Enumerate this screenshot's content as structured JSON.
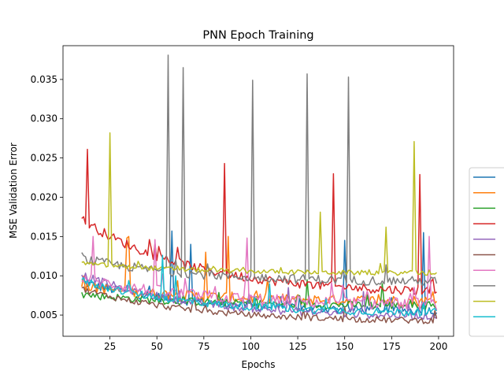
{
  "chart_data": {
    "type": "line",
    "title": "PNN Epoch Training",
    "xlabel": "Epochs",
    "ylabel": "MSE Validation Error",
    "xlim": [
      0,
      208
    ],
    "ylim": [
      0.0023,
      0.0393
    ],
    "xticks": [
      25,
      50,
      75,
      100,
      125,
      150,
      175,
      200
    ],
    "yticks": [
      0.005,
      0.01,
      0.015,
      0.02,
      0.025,
      0.03,
      0.035
    ],
    "ytick_labels": [
      "0.005",
      "0.010",
      "0.015",
      "0.020",
      "0.025",
      "0.030",
      "0.035"
    ],
    "grid": false,
    "legend_position": "right",
    "x_start": 10,
    "x_end": 199,
    "series": [
      {
        "color": "#1f77b4",
        "base_start": 0.009,
        "base_end": 0.0052,
        "noise": 0.0006,
        "spikes": [
          [
            58,
            0.0157
          ],
          [
            68,
            0.014
          ],
          [
            150,
            0.0145
          ],
          [
            192,
            0.0155
          ]
        ]
      },
      {
        "color": "#ff7f0e",
        "base_start": 0.0085,
        "base_end": 0.0065,
        "noise": 0.0007,
        "spikes": [
          [
            34,
            0.0148
          ],
          [
            35,
            0.015
          ],
          [
            76,
            0.013
          ],
          [
            88,
            0.015
          ]
        ]
      },
      {
        "color": "#2ca02c",
        "base_start": 0.0075,
        "base_end": 0.006,
        "noise": 0.0005,
        "spikes": [
          [
            130,
            0.0095
          ],
          [
            170,
            0.009
          ]
        ]
      },
      {
        "color": "#d62728",
        "base_start": 0.017,
        "base_end": 0.0075,
        "noise": 0.0006,
        "spikes": [
          [
            13,
            0.0261
          ],
          [
            86,
            0.0243
          ],
          [
            144,
            0.023
          ],
          [
            190,
            0.0229
          ]
        ]
      },
      {
        "color": "#9467bd",
        "base_start": 0.01,
        "base_end": 0.0045,
        "noise": 0.0005,
        "spikes": [
          [
            120,
            0.0085
          ],
          [
            160,
            0.008
          ]
        ]
      },
      {
        "color": "#8c564b",
        "base_start": 0.0082,
        "base_end": 0.004,
        "noise": 0.0004,
        "spikes": [
          [
            70,
            0.007
          ],
          [
            150,
            0.006
          ]
        ]
      },
      {
        "color": "#e377c2",
        "base_start": 0.0095,
        "base_end": 0.006,
        "noise": 0.0008,
        "spikes": [
          [
            16,
            0.015
          ],
          [
            49,
            0.0146
          ],
          [
            98,
            0.0148
          ],
          [
            195,
            0.015
          ]
        ]
      },
      {
        "color": "#7f7f7f",
        "base_start": 0.012,
        "base_end": 0.009,
        "noise": 0.0006,
        "spikes": [
          [
            56,
            0.0381
          ],
          [
            64,
            0.0365
          ],
          [
            101,
            0.0349
          ],
          [
            130,
            0.0357
          ],
          [
            152,
            0.0353
          ]
        ]
      },
      {
        "color": "#bcbd22",
        "base_start": 0.0115,
        "base_end": 0.0102,
        "noise": 0.0003,
        "spikes": [
          [
            25,
            0.0282
          ],
          [
            137,
            0.0181
          ],
          [
            172,
            0.0162
          ],
          [
            187,
            0.0271
          ]
        ]
      },
      {
        "color": "#17becf",
        "base_start": 0.0092,
        "base_end": 0.005,
        "noise": 0.0005,
        "spikes": [
          [
            53,
            0.0126
          ],
          [
            60,
            0.01
          ],
          [
            110,
            0.009
          ]
        ]
      }
    ]
  },
  "legend": {
    "entries": [
      "",
      "",
      "",
      "",
      "",
      "",
      "",
      "",
      "",
      ""
    ]
  }
}
